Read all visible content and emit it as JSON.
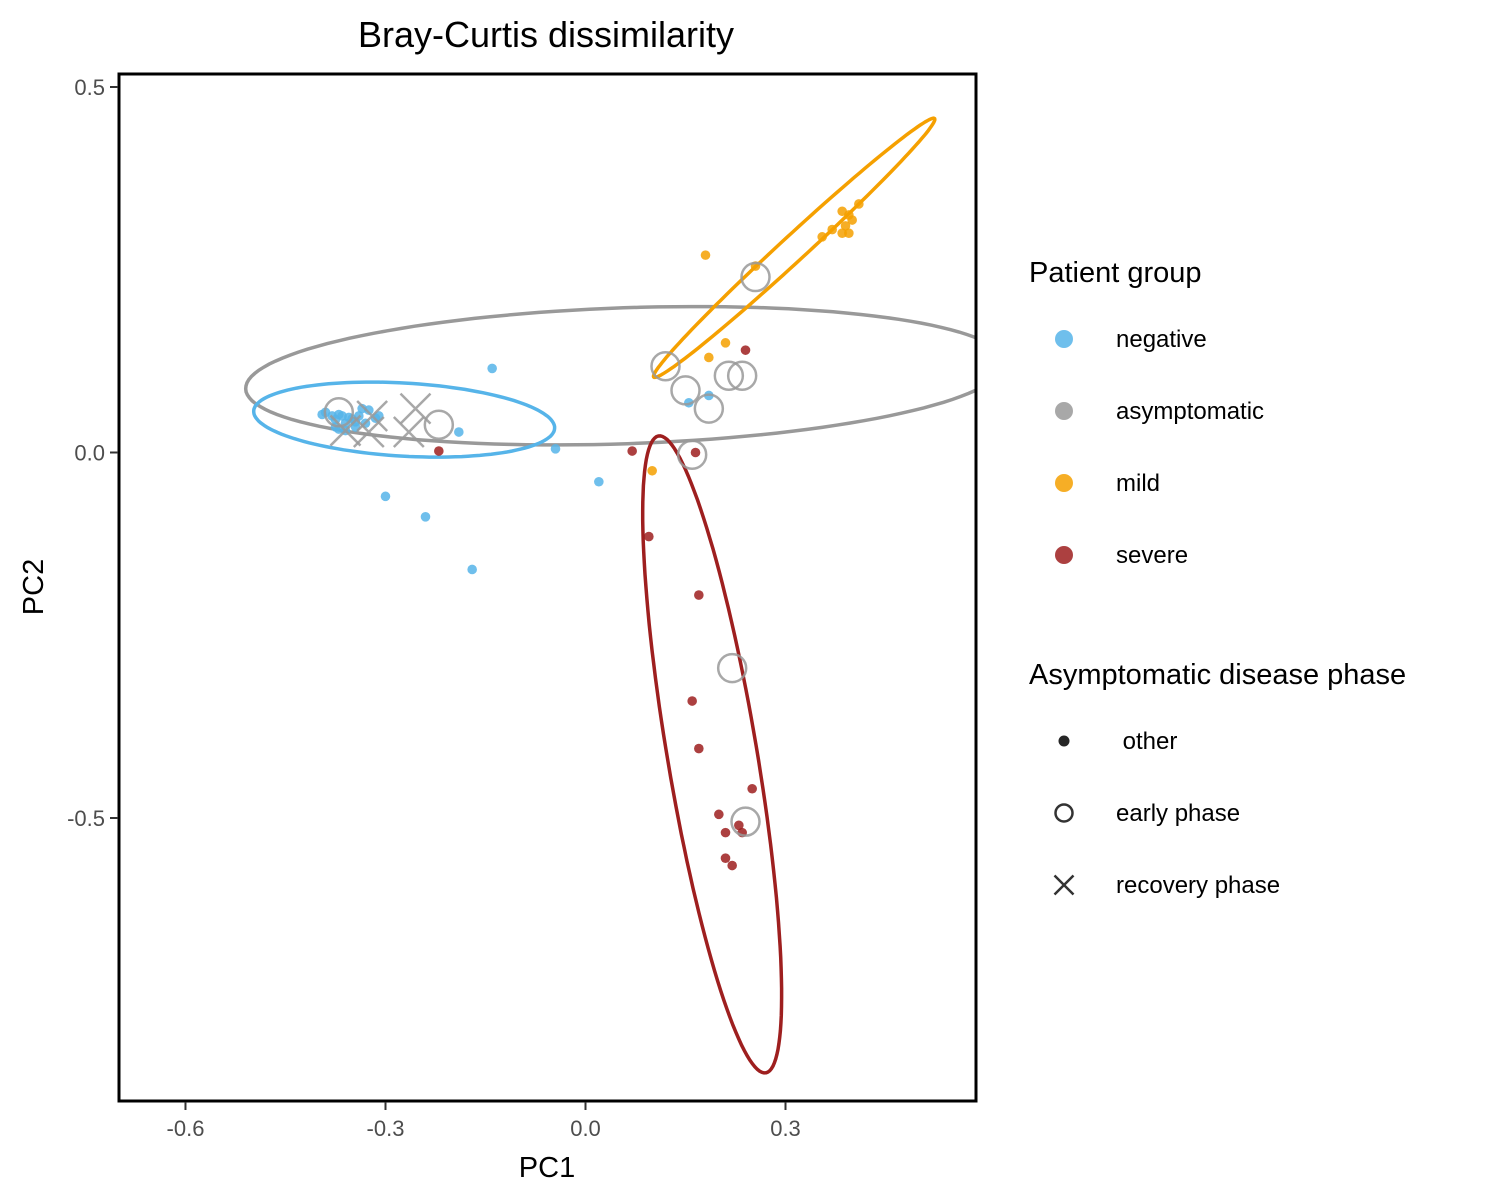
{
  "chart_data": {
    "type": "scatter",
    "title": "Bray-Curtis dissimilarity",
    "xlabel": "PC1",
    "ylabel": "PC2",
    "xlim": [
      -0.705,
      0.585
    ],
    "ylim": [
      -0.885,
      0.52
    ],
    "x_ticks": [
      -0.6,
      -0.3,
      0.0,
      0.3
    ],
    "x_tick_labels": [
      "-0.6",
      "-0.3",
      "0.0",
      "0.3"
    ],
    "y_ticks": [
      0.5,
      0.0,
      -0.5
    ],
    "y_tick_labels": [
      "0.5",
      "0.0",
      "-0.5"
    ],
    "grid": false,
    "legend_position": "right",
    "colors": {
      "negative": "#56B4E9",
      "asymptomatic": "#999999",
      "mild": "#F5A000",
      "severe": "#9E1F1F"
    },
    "legends": [
      {
        "title": "Patient group",
        "entries": [
          {
            "label": "negative",
            "group": "negative",
            "shape": "circle"
          },
          {
            "label": "asymptomatic",
            "group": "asymptomatic",
            "shape": "circle"
          },
          {
            "label": "mild",
            "group": "mild",
            "shape": "circle"
          },
          {
            "label": "severe",
            "group": "severe",
            "shape": "circle"
          }
        ]
      },
      {
        "title": "Asymptomatic disease phase",
        "entries": [
          {
            "label": " other",
            "shape": "dot"
          },
          {
            "label": "early phase",
            "shape": "open-circle"
          },
          {
            "label": "recovery phase",
            "shape": "cross"
          }
        ]
      }
    ],
    "series": [
      {
        "group": "negative",
        "phase": "other",
        "points": [
          [
            -0.395,
            0.052
          ],
          [
            -0.39,
            0.055
          ],
          [
            -0.38,
            0.05
          ],
          [
            -0.375,
            0.045
          ],
          [
            -0.37,
            0.052
          ],
          [
            -0.365,
            0.05
          ],
          [
            -0.36,
            0.04
          ],
          [
            -0.355,
            0.048
          ],
          [
            -0.35,
            0.046
          ],
          [
            -0.345,
            0.042
          ],
          [
            -0.34,
            0.05
          ],
          [
            -0.335,
            0.06
          ],
          [
            -0.325,
            0.058
          ],
          [
            -0.315,
            0.047
          ],
          [
            -0.31,
            0.05
          ],
          [
            -0.375,
            0.035
          ],
          [
            -0.36,
            0.03
          ],
          [
            -0.37,
            0.032
          ],
          [
            -0.345,
            0.035
          ],
          [
            -0.33,
            0.04
          ],
          [
            -0.19,
            0.028
          ],
          [
            -0.14,
            0.115
          ],
          [
            -0.045,
            0.005
          ],
          [
            0.02,
            -0.04
          ],
          [
            -0.3,
            -0.06
          ],
          [
            -0.24,
            -0.088
          ],
          [
            -0.17,
            -0.16
          ],
          [
            0.155,
            0.068
          ],
          [
            0.185,
            0.078
          ]
        ]
      },
      {
        "group": "severe",
        "phase": "other",
        "points": [
          [
            -0.22,
            0.002
          ],
          [
            0.07,
            0.002
          ],
          [
            0.095,
            -0.115
          ],
          [
            0.17,
            -0.195
          ],
          [
            0.165,
            0.0
          ],
          [
            0.24,
            0.14
          ],
          [
            0.16,
            -0.34
          ],
          [
            0.17,
            -0.405
          ],
          [
            0.25,
            -0.46
          ],
          [
            0.2,
            -0.495
          ],
          [
            0.21,
            -0.52
          ],
          [
            0.23,
            -0.51
          ],
          [
            0.235,
            -0.52
          ],
          [
            0.21,
            -0.555
          ],
          [
            0.22,
            -0.565
          ]
        ]
      },
      {
        "group": "mild",
        "phase": "other",
        "points": [
          [
            0.18,
            0.27
          ],
          [
            0.255,
            0.255
          ],
          [
            0.185,
            0.13
          ],
          [
            0.21,
            0.15
          ],
          [
            0.1,
            -0.025
          ],
          [
            0.355,
            0.295
          ],
          [
            0.37,
            0.305
          ],
          [
            0.385,
            0.3
          ],
          [
            0.39,
            0.31
          ],
          [
            0.395,
            0.325
          ],
          [
            0.4,
            0.318
          ],
          [
            0.41,
            0.34
          ],
          [
            0.395,
            0.3
          ],
          [
            0.385,
            0.33
          ]
        ]
      },
      {
        "group": "asymptomatic",
        "phase": "early phase",
        "points": [
          [
            -0.37,
            0.055
          ],
          [
            -0.22,
            0.038
          ],
          [
            0.255,
            0.24
          ],
          [
            0.12,
            0.118
          ],
          [
            0.15,
            0.085
          ],
          [
            0.215,
            0.105
          ],
          [
            0.235,
            0.105
          ],
          [
            0.185,
            0.06
          ],
          [
            0.16,
            -0.003
          ],
          [
            0.22,
            -0.295
          ],
          [
            0.24,
            -0.505
          ]
        ]
      },
      {
        "group": "asymptomatic",
        "phase": "recovery phase",
        "points": [
          [
            -0.36,
            0.03
          ],
          [
            -0.325,
            0.028
          ],
          [
            -0.32,
            0.05
          ],
          [
            -0.265,
            0.028
          ],
          [
            -0.255,
            0.06
          ]
        ]
      }
    ],
    "ellipses": [
      {
        "group": "asymptomatic",
        "center": [
          0.06,
          0.105
        ],
        "semi_major": 0.57,
        "semi_minor": 0.093,
        "angle_deg": 1.8
      },
      {
        "group": "negative",
        "center": [
          -0.272,
          0.045
        ],
        "semi_major": 0.226,
        "semi_minor": 0.05,
        "angle_deg": -3
      },
      {
        "group": "mild",
        "center": [
          0.313,
          0.28
        ],
        "semi_major": 0.275,
        "semi_minor": 0.018,
        "angle_deg": 40
      },
      {
        "group": "severe",
        "center": [
          0.19,
          -0.413
        ],
        "semi_major": 0.443,
        "semi_minor": 0.067,
        "angle_deg": -79.5
      }
    ]
  }
}
